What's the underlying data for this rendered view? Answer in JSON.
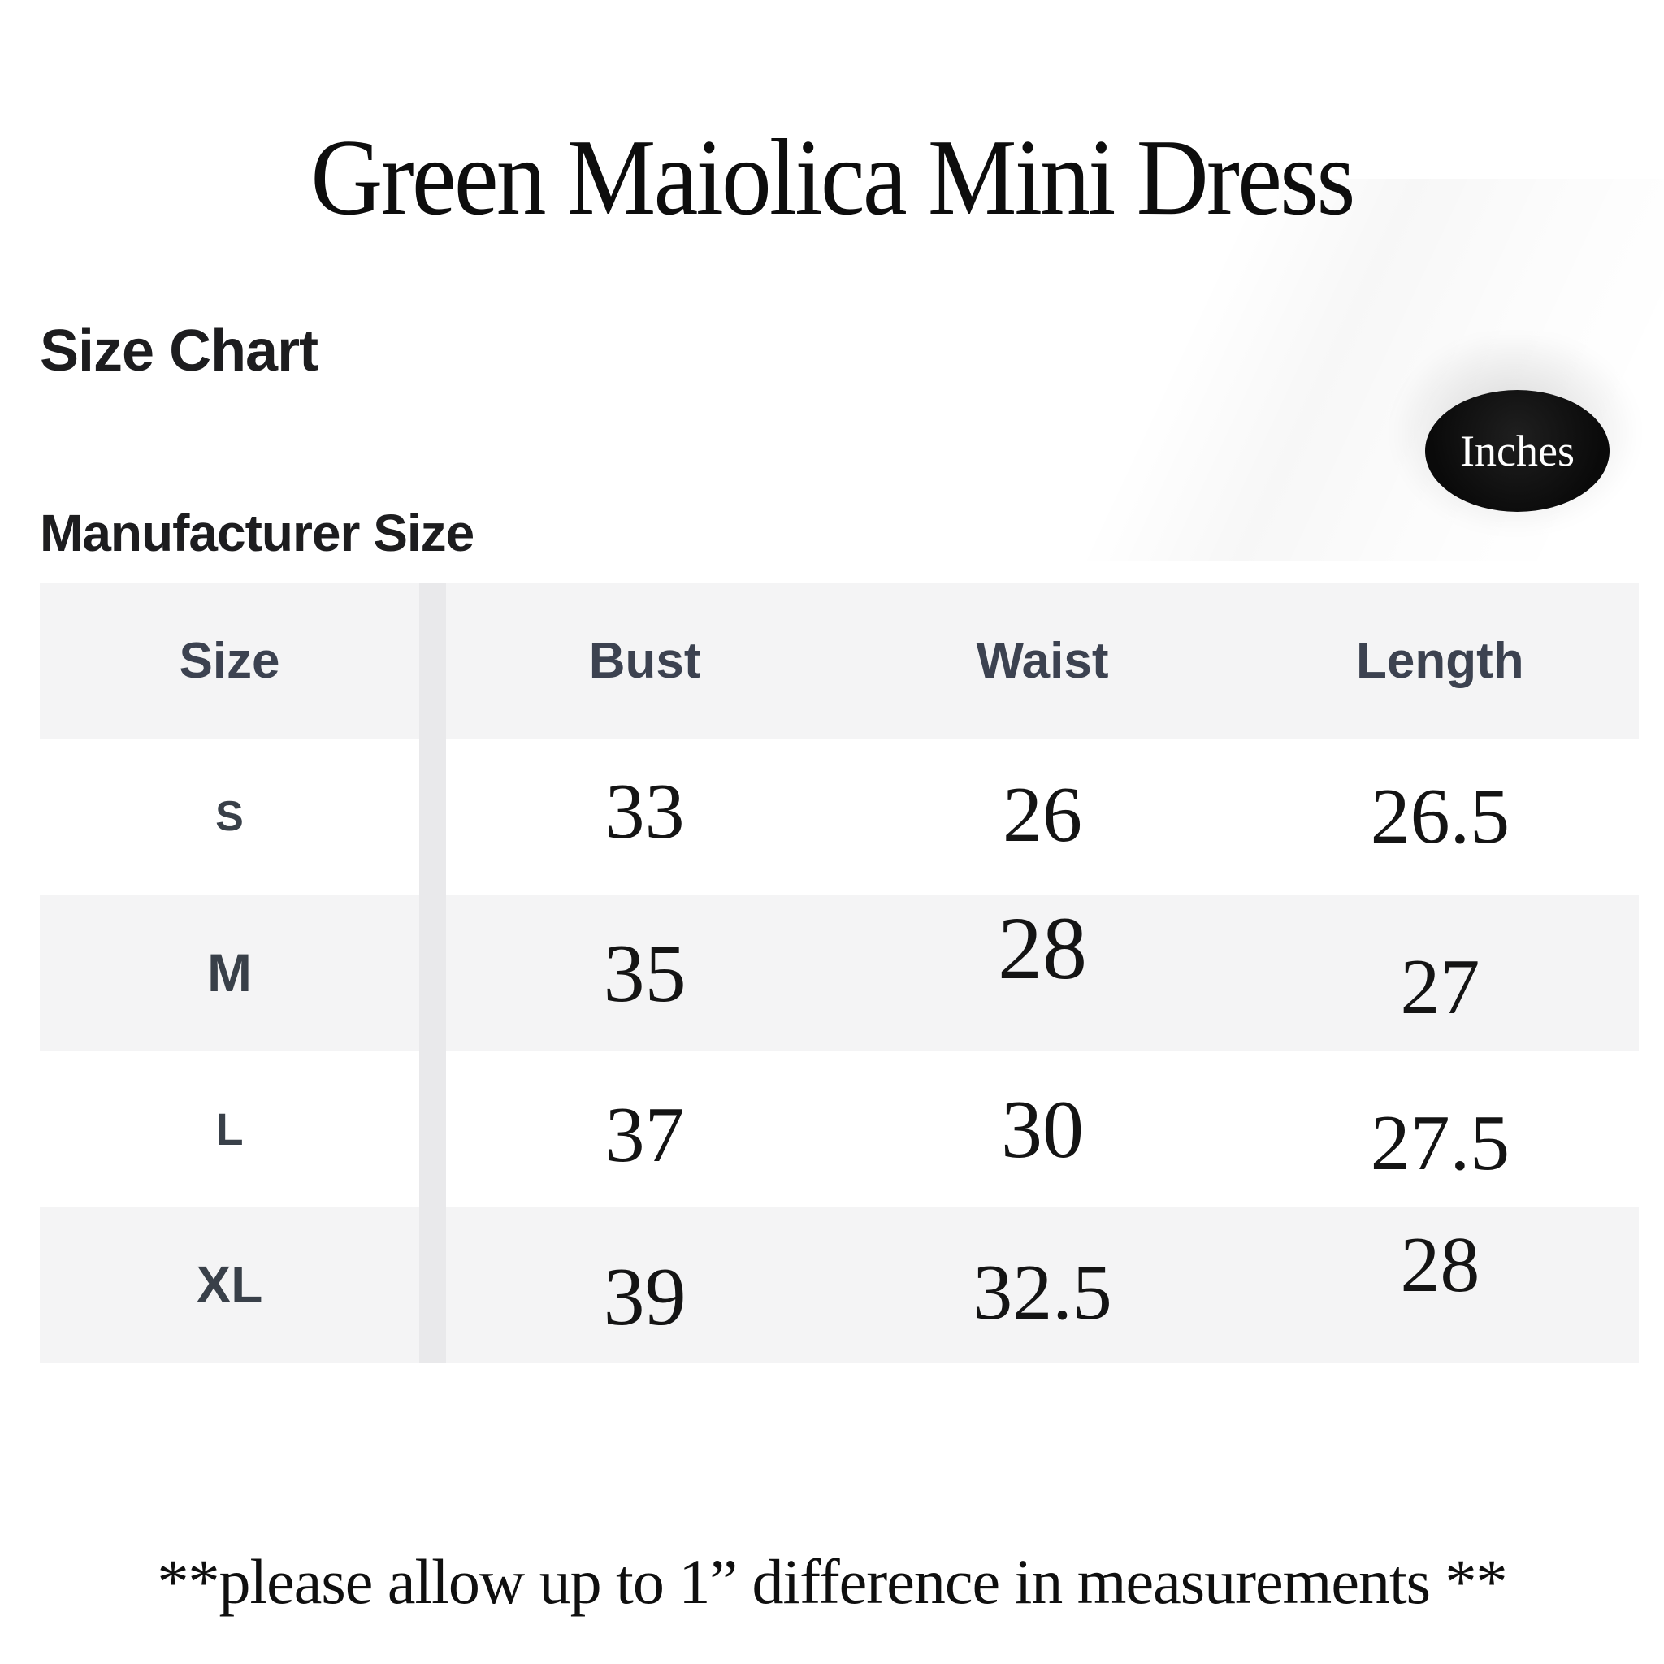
{
  "page": {
    "title": "Green Maiolica Mini Dress"
  },
  "headings": {
    "section": "Size Chart",
    "manufacturer": "Manufacturer Size"
  },
  "unit_toggle": {
    "selected": "Inches"
  },
  "table": {
    "headers": [
      "Size",
      "Bust",
      "Waist",
      "Length"
    ],
    "rows": [
      {
        "size": "S",
        "bust": "33",
        "waist": "26",
        "length": "26.5"
      },
      {
        "size": "M",
        "bust": "35",
        "waist": "28",
        "length": "27"
      },
      {
        "size": "L",
        "bust": "37",
        "waist": "30",
        "length": "27.5"
      },
      {
        "size": "XL",
        "bust": "39",
        "waist": "32.5",
        "length": "28"
      }
    ]
  },
  "chart_data": {
    "type": "table",
    "title": "Green Maiolica Mini Dress — Size Chart (Manufacturer Size, Inches)",
    "columns": [
      "Size",
      "Bust",
      "Waist",
      "Length"
    ],
    "rows": [
      [
        "S",
        33,
        26,
        26.5
      ],
      [
        "M",
        35,
        28,
        27
      ],
      [
        "L",
        37,
        30,
        27.5
      ],
      [
        "XL",
        39,
        32.5,
        28
      ]
    ]
  },
  "footer": {
    "note": "**please allow up to 1” difference in measurements **"
  },
  "colors": {
    "row_stripe": "#f4f4f5",
    "column_gap": "#e9e9eb",
    "pill_bg": "#111111",
    "pill_text": "#ffffff",
    "header_text": "#3c4250",
    "number_text": "#141414"
  }
}
